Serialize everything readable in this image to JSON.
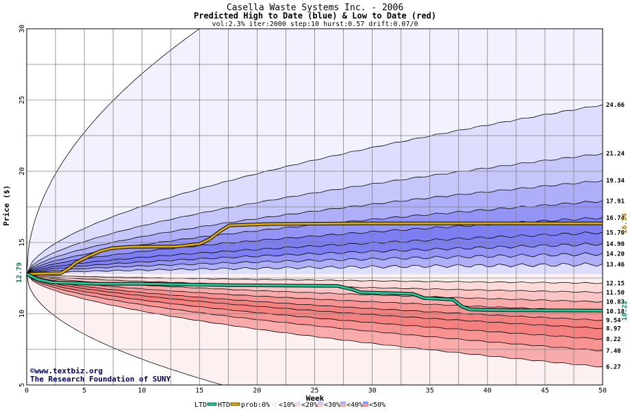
{
  "chart_data": {
    "type": "area",
    "title": "Casella Waste Systems Inc. - 2006",
    "subtitle": "Predicted High to Date (blue) &  Low to Date (red)",
    "params": "vol:2.3% iter:2000 step:10 hurst:0.57 drift:0.07/0",
    "xlabel": "Week",
    "ylabel": "Price ($)",
    "xlim": [
      0,
      50
    ],
    "ylim": [
      5,
      30
    ],
    "x_ticks": [
      0,
      5,
      10,
      15,
      20,
      25,
      30,
      35,
      40,
      45,
      50
    ],
    "y_ticks": [
      5,
      10,
      15,
      20,
      25,
      30
    ],
    "grid": true,
    "start_price": 12.79,
    "start_label": "12.79",
    "high_percentile_values": [
      24.66,
      21.24,
      19.34,
      17.91,
      16.74,
      15.7,
      14.9,
      14.2,
      13.46
    ],
    "low_percentile_values": [
      12.15,
      11.5,
      10.83,
      10.18,
      9.54,
      8.97,
      8.22,
      7.4,
      6.27
    ],
    "right_labels": [
      "24.66",
      "21.24",
      "19.34",
      "17.91",
      "16.74",
      "15.70",
      "14.90",
      "14.20",
      "13.46",
      "12.15",
      "11.50",
      "10.83",
      "10.18",
      "9.54",
      "8.97",
      "8.22",
      "7.40",
      "6.27"
    ],
    "outer_high_at_week_15": 30,
    "outer_low_at_week_17": 5,
    "series": [
      {
        "name": "HTD",
        "color": "#ddaa00",
        "points": [
          [
            0,
            12.79
          ],
          [
            1.5,
            12.82
          ],
          [
            3,
            12.85
          ],
          [
            3.7,
            13.2
          ],
          [
            4.3,
            13.6
          ],
          [
            5.3,
            14.0
          ],
          [
            6.4,
            14.4
          ],
          [
            7.4,
            14.6
          ],
          [
            9,
            14.7
          ],
          [
            13,
            14.72
          ],
          [
            15,
            14.9
          ],
          [
            15.8,
            15.2
          ],
          [
            16.8,
            15.8
          ],
          [
            17.6,
            16.2
          ],
          [
            21,
            16.3
          ],
          [
            30,
            16.34
          ],
          [
            50,
            16.34
          ]
        ],
        "end_label": "16.34"
      },
      {
        "name": "LTD",
        "color": "#22cc99",
        "points": [
          [
            0,
            12.79
          ],
          [
            1,
            12.4
          ],
          [
            2.2,
            12.2
          ],
          [
            6,
            12.1
          ],
          [
            10,
            12.1
          ],
          [
            14,
            12.05
          ],
          [
            18,
            12.0
          ],
          [
            27,
            11.95
          ],
          [
            28.3,
            11.7
          ],
          [
            29,
            11.5
          ],
          [
            33.5,
            11.4
          ],
          [
            34.5,
            11.1
          ],
          [
            37,
            11.0
          ],
          [
            37.8,
            10.5
          ],
          [
            38.5,
            10.3
          ],
          [
            41,
            10.25
          ],
          [
            50,
            10.22
          ]
        ],
        "end_label": "10.22"
      }
    ],
    "legend_items": [
      "LTD",
      "HTD",
      "prob:0%",
      "<10%",
      "<20%",
      "<30%",
      "<40%",
      "<50%"
    ],
    "legend_prefix": "prob:",
    "legend_placement": "bottom",
    "band_colors_high": [
      "#f2f2ff",
      "#ddddfd",
      "#c6c6fb",
      "#aeaef9",
      "#9494f6",
      "#7e7ef3"
    ],
    "band_colors_low": [
      "#fdf0f0",
      "#fcdada",
      "#fbc4c4",
      "#f9aaaa",
      "#f79393",
      "#f58080"
    ]
  },
  "credits": {
    "site": "©www.textbiz.org",
    "org": "The Research Foundation of SUNY"
  }
}
